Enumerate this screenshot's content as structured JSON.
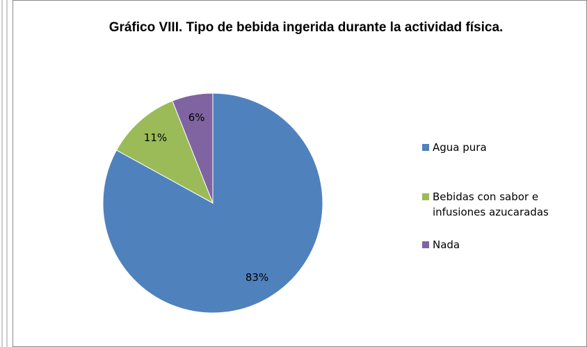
{
  "chart_data": {
    "type": "pie",
    "title": "Gráfico VIII.  Tipo de bebida ingerida durante la actividad física.",
    "categories": [
      "Agua pura",
      "Bebidas con sabor e infusiones azucaradas",
      "Nada"
    ],
    "values": [
      83,
      11,
      6
    ],
    "value_labels": [
      "83%",
      "11%",
      "6%"
    ],
    "colors": [
      "#4f81bd",
      "#9bbb59",
      "#8064a2"
    ],
    "legend": "right"
  }
}
